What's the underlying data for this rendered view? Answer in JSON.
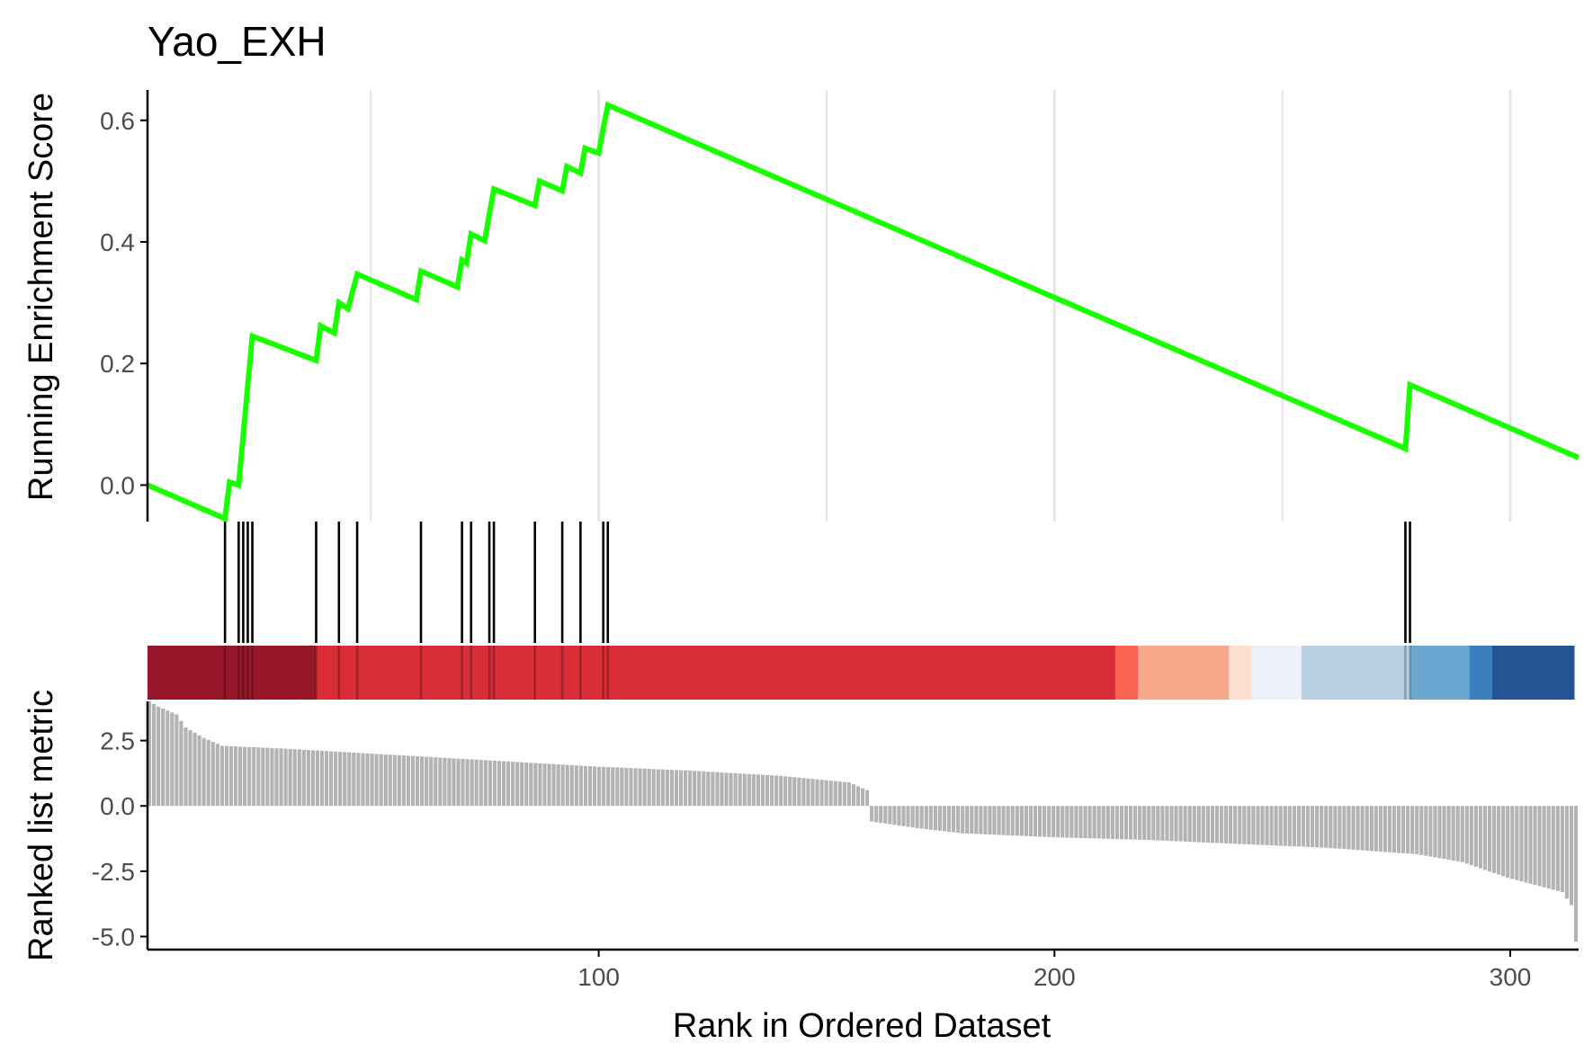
{
  "chart_data": {
    "type": "line",
    "title": "Yao_EXH",
    "xlabel": "Rank in Ordered Dataset",
    "xlim": [
      1,
      315
    ],
    "x_ticks": [
      100,
      200,
      300
    ],
    "x_tick_labels": [
      "100",
      "200",
      "300"
    ],
    "grid": "vertical major gridlines in enrichment panel",
    "colors": {
      "es_line": "#1aff00",
      "hit": "#000000",
      "metric_bar": "#b3b3b3",
      "gridline": "#e5e5e5"
    },
    "enrichment_panel": {
      "ylabel": "Running Enrichment Score",
      "ylim": [
        -0.06,
        0.65
      ],
      "y_ticks": [
        0.0,
        0.2,
        0.4,
        0.6
      ],
      "y_tick_labels": [
        "0.0",
        "0.2",
        "0.4",
        "0.6"
      ],
      "series": [
        {
          "x": [
            1,
            18,
            19,
            21,
            24,
            38,
            39,
            42,
            43,
            45,
            47,
            60,
            61,
            69,
            70,
            71,
            72,
            75,
            76,
            77,
            86,
            87,
            92,
            93,
            96,
            97,
            100,
            101,
            102,
            277,
            278,
            315
          ],
          "y": [
            0.0,
            -0.055,
            0.005,
            0.0,
            0.245,
            0.205,
            0.262,
            0.25,
            0.3,
            0.29,
            0.347,
            0.305,
            0.352,
            0.326,
            0.37,
            0.365,
            0.413,
            0.402,
            0.445,
            0.487,
            0.46,
            0.5,
            0.484,
            0.524,
            0.513,
            0.554,
            0.546,
            0.587,
            0.625,
            0.06,
            0.165,
            0.045
          ]
        }
      ]
    },
    "hits_panel": {
      "hit_ranks": [
        18,
        21,
        22,
        23,
        24,
        38,
        43,
        47,
        61,
        70,
        72,
        76,
        77,
        86,
        92,
        96,
        101,
        102,
        277,
        278
      ],
      "color_band": [
        {
          "from": 1,
          "to": 38,
          "color": "#99172b"
        },
        {
          "from": 38,
          "to": 214,
          "color": "#d92d37"
        },
        {
          "from": 214,
          "to": 219,
          "color": "#f9634f"
        },
        {
          "from": 219,
          "to": 239,
          "color": "#f8a98a"
        },
        {
          "from": 239,
          "to": 244,
          "color": "#fddfd2"
        },
        {
          "from": 244,
          "to": 255,
          "color": "#ebf0fb"
        },
        {
          "from": 255,
          "to": 279,
          "color": "#b9d0e4"
        },
        {
          "from": 279,
          "to": 292,
          "color": "#6aa6d0"
        },
        {
          "from": 292,
          "to": 297,
          "color": "#3a7ebd"
        },
        {
          "from": 297,
          "to": 315,
          "color": "#245494"
        }
      ]
    },
    "metric_panel": {
      "ylabel": "Ranked list metric",
      "ylim": [
        -5.5,
        4.0
      ],
      "y_ticks": [
        -5.0,
        -2.5,
        0.0,
        2.5
      ],
      "y_tick_labels": [
        "-5.0",
        "-2.5",
        "0.0",
        "2.5"
      ],
      "anchors_x": [
        1,
        3,
        7,
        9,
        13,
        17,
        30,
        50,
        80,
        100,
        120,
        140,
        155,
        159,
        160,
        170,
        180,
        200,
        220,
        240,
        260,
        280,
        290,
        300,
        312,
        314,
        315
      ],
      "anchors_y": [
        4.0,
        3.8,
        3.5,
        3.0,
        2.6,
        2.3,
        2.2,
        2.0,
        1.7,
        1.5,
        1.35,
        1.15,
        0.9,
        0.6,
        -0.6,
        -0.85,
        -1.05,
        -1.2,
        -1.3,
        -1.45,
        -1.6,
        -1.85,
        -2.15,
        -2.75,
        -3.3,
        -3.8,
        -5.2
      ]
    }
  }
}
